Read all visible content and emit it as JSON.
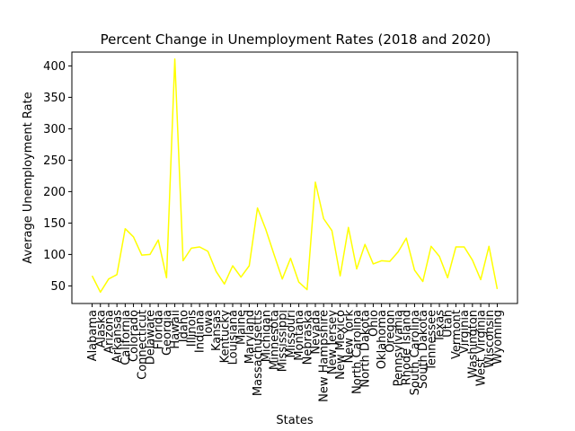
{
  "chart_data": {
    "type": "line",
    "title": "Percent Change in Unemployment Rates (2018 and 2020)",
    "xlabel": "States",
    "ylabel": "Average Unemployment Rate",
    "ylim": [
      22,
      422
    ],
    "yticks": [
      50,
      100,
      150,
      200,
      250,
      300,
      350,
      400
    ],
    "grid": false,
    "line_color": "#ffff00",
    "categories": [
      "Alabama",
      "Alaska",
      "Arizona",
      "Arkansas",
      "California",
      "Colorado",
      "Connecticut",
      "Delaware",
      "Florida",
      "Georgia",
      "Hawaii",
      "Idaho",
      "Illinois",
      "Indiana",
      "Iowa",
      "Kansas",
      "Kentucky",
      "Louisiana",
      "Maine",
      "Maryland",
      "Massachusetts",
      "Michigan",
      "Minnesota",
      "Mississippi",
      "Missouri",
      "Montana",
      "Nebraska",
      "Nevada",
      "New Hampshire",
      "New Jersey",
      "New Mexico",
      "New York",
      "North Carolina",
      "North Dakota",
      "Ohio",
      "Oklahoma",
      "Oregon",
      "Pennsylvania",
      "Rhode Island",
      "South Carolina",
      "South Dakota",
      "Tennessee",
      "Texas",
      "Utah",
      "Vermont",
      "Virginia",
      "Washington",
      "West Virginia",
      "Wisconsin",
      "Wyoming"
    ],
    "values": [
      66,
      40,
      61,
      68,
      141,
      128,
      99,
      100,
      123,
      63,
      411,
      90,
      110,
      112,
      105,
      73,
      53,
      82,
      64,
      82,
      174,
      140,
      100,
      61,
      94,
      56,
      44,
      215,
      157,
      138,
      66,
      143,
      77,
      116,
      85,
      90,
      89,
      104,
      126,
      75,
      57,
      113,
      97,
      63,
      112,
      112,
      91,
      60,
      113,
      45
    ]
  }
}
